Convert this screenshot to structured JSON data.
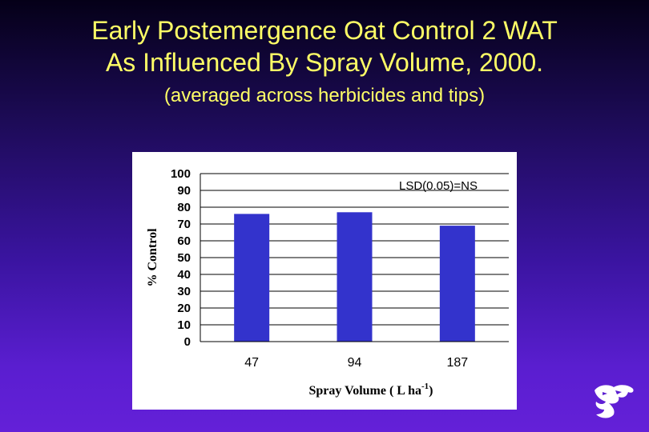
{
  "title_line1": "Early Postemergence Oat Control 2 WAT",
  "title_line2": "As Influenced By Spray Volume, 2000.",
  "subtitle": "(averaged across herbicides and tips)",
  "chart_data": {
    "type": "bar",
    "categories": [
      "47",
      "94",
      "187"
    ],
    "values": [
      76,
      77,
      69
    ],
    "ylabel": "% Control",
    "xlabel": "Spray Volume ( L ha",
    "xlabel_superscript": "-1",
    "xlabel_suffix": ")",
    "ylim": [
      0,
      100
    ],
    "yticks": [
      "0",
      "10",
      "20",
      "30",
      "40",
      "50",
      "60",
      "70",
      "80",
      "90",
      "100"
    ],
    "annotation": "LSD(0.05)=NS",
    "grid": true,
    "bar_color": "#3333cc"
  },
  "colors": {
    "title": "#ffff66",
    "chart_background": "#ffffff",
    "bar": "#3333cc"
  },
  "logo_icon": "wildcat-logo-icon"
}
